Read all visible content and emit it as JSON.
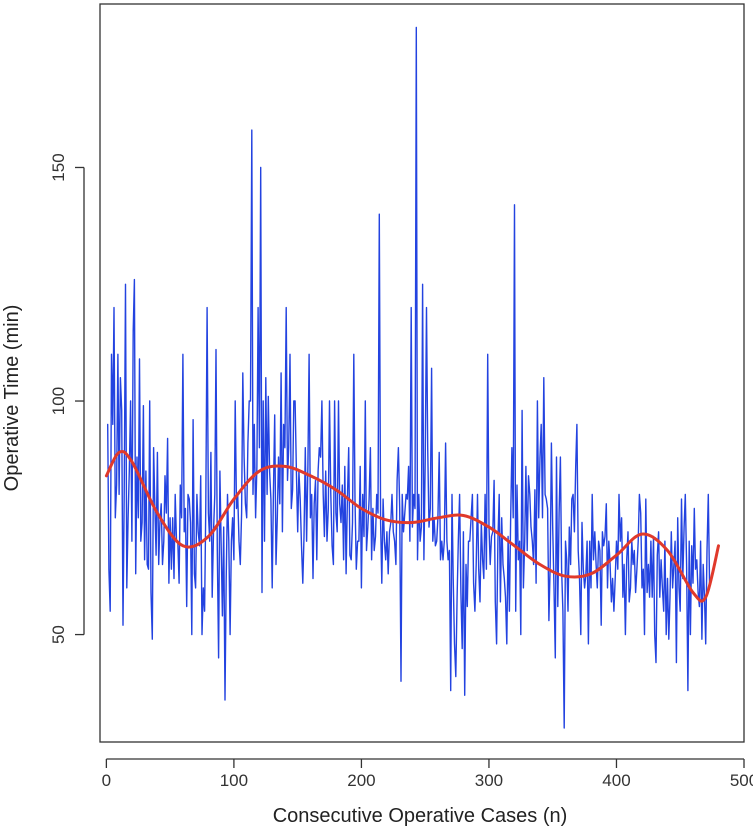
{
  "chart_data": {
    "type": "line",
    "xlabel": "Consecutive Operative Cases (n)",
    "ylabel": "Operative Time (min)",
    "xlim": [
      -5,
      500
    ],
    "ylim": [
      27,
      185
    ],
    "x_ticks": [
      0,
      100,
      200,
      300,
      400,
      500
    ],
    "y_ticks": [
      50,
      100,
      150
    ],
    "x_tick_labels": [
      "0",
      "100",
      "200",
      "300",
      "400",
      "500"
    ],
    "y_tick_labels": [
      "50",
      "100",
      "150"
    ],
    "grid": false,
    "series": [
      {
        "style": "raw",
        "color": "#2343e0",
        "x_start": 1,
        "x_step": 1,
        "values": [
          95,
          64,
          55,
          110,
          95,
          120,
          75,
          82,
          110,
          80,
          105,
          98,
          52,
          80,
          125,
          60,
          75,
          85,
          100,
          70,
          115,
          126,
          63,
          88,
          75,
          109,
          70,
          74,
          99,
          66,
          85,
          65,
          64,
          100,
          59,
          49,
          90,
          78,
          67,
          89,
          65,
          74,
          78,
          65,
          70,
          84,
          76,
          92,
          61,
          75,
          64,
          75,
          62,
          80,
          70,
          70,
          61,
          82,
          75,
          110,
          72,
          77,
          56,
          80,
          79,
          74,
          50,
          96,
          63,
          60,
          80,
          72,
          69,
          84,
          50,
          60,
          55,
          78,
          120,
          76,
          70,
          89,
          58,
          72,
          80,
          111,
          68,
          45,
          85,
          70,
          54,
          73,
          36,
          62,
          80,
          70,
          50,
          70,
          75,
          66,
          100,
          77,
          80,
          70,
          65,
          76,
          106,
          88,
          78,
          75,
          91,
          100,
          100,
          158,
          80,
          95,
          75,
          86,
          120,
          90,
          150,
          59,
          100,
          70,
          105,
          80,
          101,
          85,
          79,
          60,
          80,
          97,
          65,
          75,
          88,
          78,
          106,
          72,
          95,
          90,
          120,
          83,
          90,
          110,
          77,
          81,
          100,
          100,
          85,
          72,
          85,
          79,
          69,
          61,
          71,
          90,
          70,
          86,
          110,
          75,
          80,
          62,
          78,
          83,
          66,
          85,
          90,
          88,
          100,
          80,
          71,
          85,
          70,
          77,
          100,
          80,
          69,
          65,
          100,
          76,
          72,
          100,
          78,
          74,
          82,
          66,
          86,
          63,
          79,
          90,
          67,
          66,
          74,
          110,
          79,
          64,
          70,
          70,
          86,
          60,
          80,
          71,
          100,
          68,
          73,
          79,
          90,
          66,
          77,
          68,
          71,
          80,
          76,
          140,
          74,
          61,
          79,
          70,
          66,
          72,
          63,
          72,
          74,
          80,
          72,
          70,
          65,
          83,
          90,
          77,
          40,
          80,
          72,
          76,
          80,
          79,
          86,
          70,
          120,
          73,
          80,
          77,
          180,
          66,
          80,
          70,
          73,
          125,
          66,
          87,
          120,
          90,
          73,
          77,
          107,
          70,
          75,
          69,
          70,
          75,
          89,
          66,
          70,
          66,
          70,
          91,
          70,
          66,
          68,
          38,
          80,
          62,
          48,
          41,
          58,
          70,
          80,
          59,
          47,
          72,
          37,
          65,
          56,
          70,
          70,
          75,
          80,
          61,
          55,
          65,
          80,
          64,
          57,
          74,
          66,
          62,
          80,
          64,
          110,
          73,
          65,
          71,
          72,
          83,
          57,
          48,
          70,
          80,
          57,
          75,
          65,
          62,
          58,
          48,
          71,
          55,
          74,
          90,
          75,
          142,
          55,
          82,
          66,
          70,
          50,
          98,
          60,
          70,
          86,
          68,
          84,
          80,
          73,
          70,
          65,
          81,
          61,
          100,
          75,
          88,
          95,
          75,
          105,
          80,
          79,
          77,
          53,
          65,
          91,
          73,
          60,
          45,
          88,
          56,
          76,
          88,
          64,
          55,
          30,
          70,
          66,
          55,
          73,
          65,
          79,
          80,
          72,
          86,
          95,
          68,
          62,
          50,
          74,
          64,
          60,
          63,
          70,
          48,
          70,
          60,
          80,
          66,
          72,
          65,
          60,
          70,
          68,
          52,
          72,
          69,
          71,
          78,
          60,
          70,
          65,
          57,
          62,
          55,
          62,
          70,
          64,
          80,
          70,
          75,
          58,
          65,
          50,
          66,
          72,
          57,
          60,
          70,
          65,
          68,
          59,
          64,
          70,
          80,
          76,
          60,
          64,
          50,
          79,
          59,
          65,
          58,
          70,
          58,
          71,
          50,
          44,
          67,
          72,
          58,
          66,
          60,
          55,
          70,
          50,
          62,
          49,
          58,
          72,
          60,
          65,
          70,
          44,
          75,
          60,
          55,
          79,
          62,
          73,
          80,
          65,
          38,
          70,
          50,
          69,
          61,
          77,
          64,
          66,
          59,
          56,
          70,
          49,
          65,
          58,
          48,
          68,
          80,
          60
        ]
      },
      {
        "style": "smooth",
        "color": "#e0392b",
        "x": [
          0,
          10,
          20,
          40,
          60,
          80,
          100,
          120,
          140,
          160,
          180,
          200,
          220,
          240,
          260,
          280,
          300,
          320,
          340,
          360,
          380,
          400,
          420,
          440,
          460,
          470,
          480
        ],
        "values": [
          84,
          89,
          87,
          76,
          69,
          71,
          79,
          85,
          86,
          84,
          81,
          77,
          74.5,
          74,
          75,
          75.5,
          73,
          69,
          65,
          62.5,
          63,
          67,
          71.5,
          68,
          59,
          58,
          69
        ]
      }
    ]
  }
}
